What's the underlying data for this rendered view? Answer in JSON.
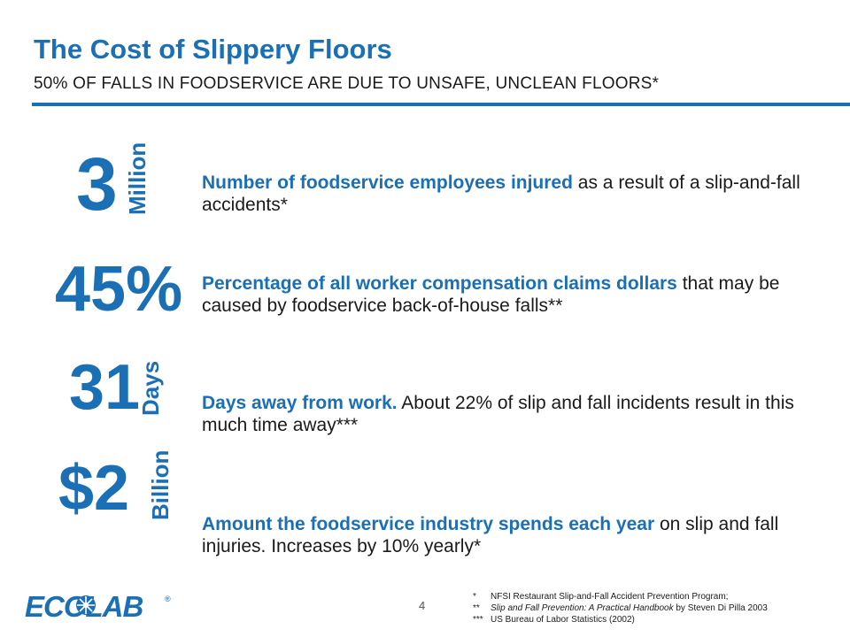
{
  "header": {
    "title": "The Cost of Slippery Floors",
    "subtitle": "50% OF FALLS IN FOODSERVICE ARE DUE TO UNSAFE, UNCLEAN FLOORS*"
  },
  "stats": [
    {
      "number": "3",
      "unit": "Million",
      "highlight": "Number of foodservice employees injured",
      "rest": " as a result of a slip-and-fall accidents*"
    },
    {
      "number": "45%",
      "unit": "",
      "highlight": "Percentage of all worker compensation claims dollars",
      "rest": " that may be caused by foodservice back-of-house falls**"
    },
    {
      "number": "31",
      "unit": "Days",
      "highlight": "Days away from work.",
      "rest": " About 22% of slip and fall incidents result in this much time away***"
    },
    {
      "number": "$2",
      "unit": "Billion",
      "highlight": "Amount the foodservice industry spends each year",
      "rest": " on slip and fall injuries. Increases by 10% yearly*"
    }
  ],
  "footer": {
    "page_number": "4",
    "logo_text": "ECOLAB",
    "logo_reg": "®",
    "footnotes": [
      {
        "mark": "*",
        "italic": "",
        "text": "NFSI Restaurant Slip-and-Fall Accident Prevention Program;"
      },
      {
        "mark": "**",
        "italic": "Slip and Fall Prevention: A Practical Handbook",
        "text": " by Steven Di Pilla 2003"
      },
      {
        "mark": "***",
        "italic": "",
        "text": "US Bureau of Labor Statistics (2002)"
      }
    ]
  },
  "colors": {
    "accent": "#1a6fb5",
    "text": "#1a1a1a"
  }
}
